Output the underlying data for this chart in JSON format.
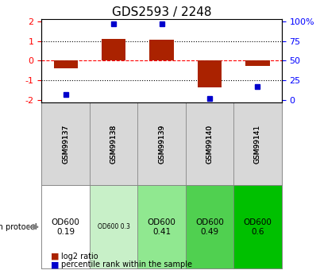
{
  "title": "GDS2593 / 2248",
  "samples": [
    "GSM99137",
    "GSM99138",
    "GSM99139",
    "GSM99140",
    "GSM99141"
  ],
  "log2_ratio": [
    -0.38,
    1.1,
    1.05,
    -1.35,
    -0.28
  ],
  "percentile_rank": [
    7,
    97,
    97,
    2,
    17
  ],
  "protocol_labels": [
    "OD600\n0.19",
    "OD600 0.3",
    "OD600\n0.41",
    "OD600\n0.49",
    "OD600\n0.6"
  ],
  "protocol_colors": [
    "#ffffff",
    "#c8f0c8",
    "#90e890",
    "#50d050",
    "#00c000"
  ],
  "protocol_small_font": [
    false,
    true,
    false,
    false,
    false
  ],
  "bar_color": "#aa2200",
  "dot_color": "#0000cc",
  "yticks_left": [
    -2,
    -1,
    0,
    1,
    2
  ],
  "yticks_right": [
    0,
    25,
    50,
    75,
    100
  ],
  "ylim": [
    -2.1,
    2.1
  ],
  "right_ylim": [
    0,
    105
  ],
  "legend_red": "log2 ratio",
  "legend_blue": "percentile rank within the sample"
}
